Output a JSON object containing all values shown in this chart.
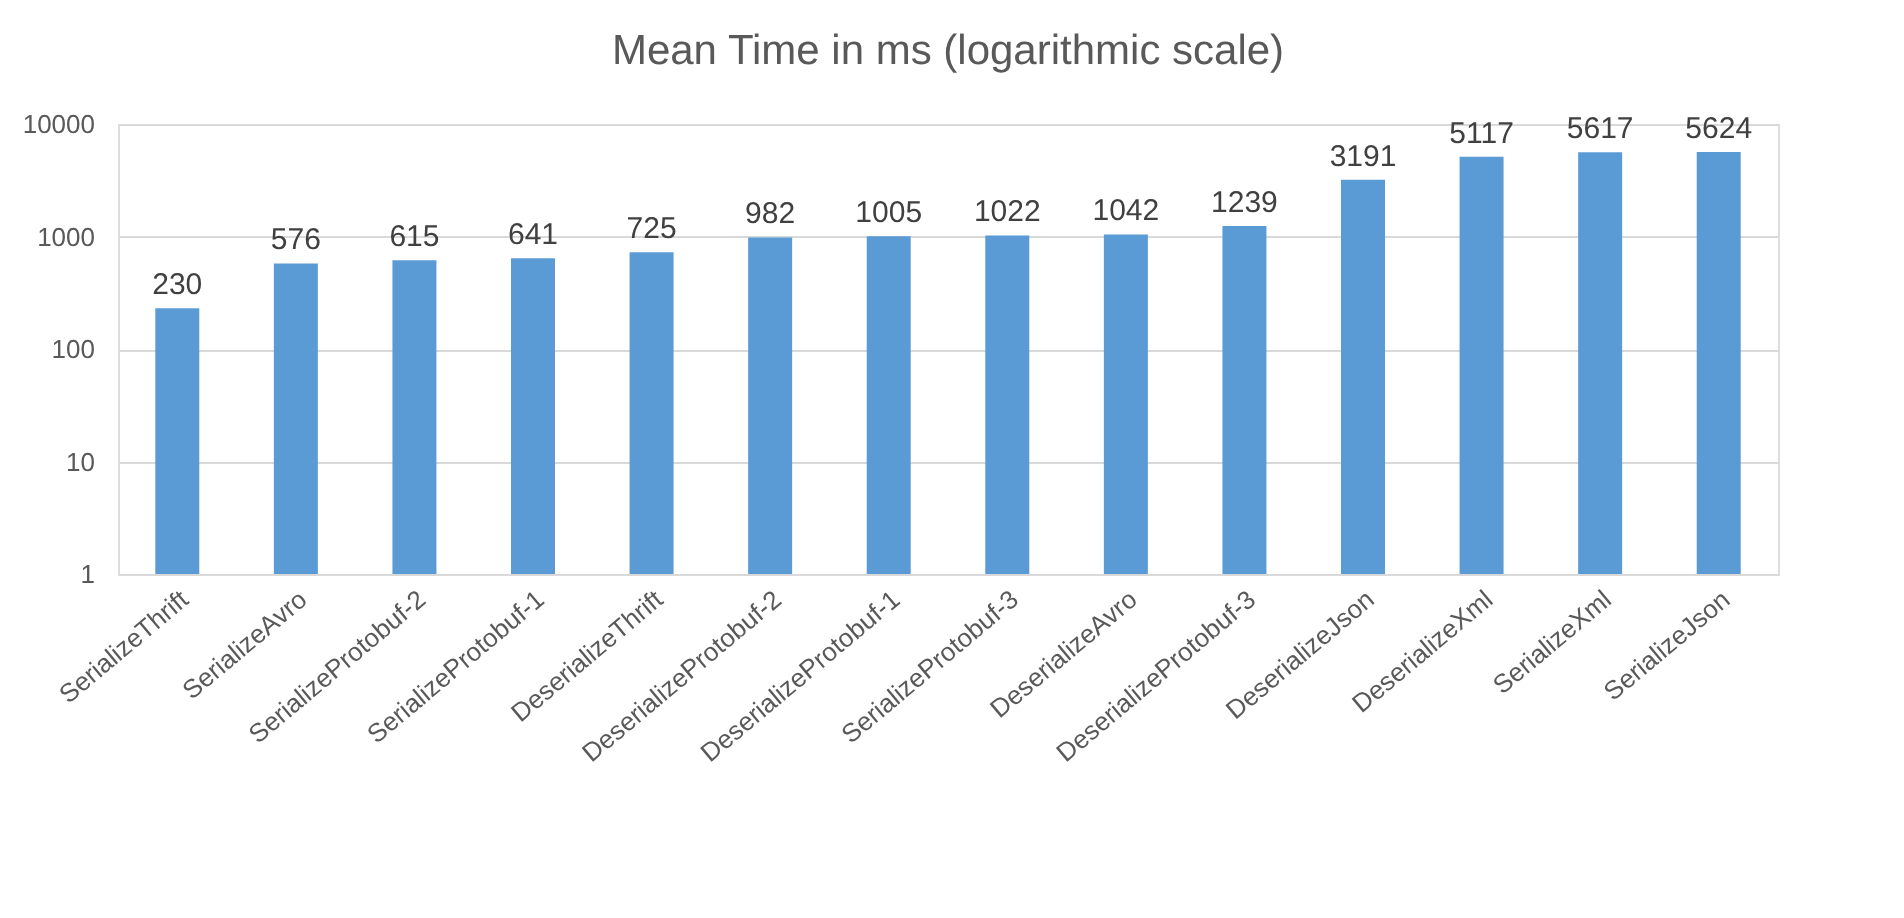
{
  "chart_data": {
    "type": "bar",
    "title": "Mean Time in ms (logarithmic scale)",
    "categories": [
      "SerializeThrift",
      "SerializeAvro",
      "SerializeProtobuf-2",
      "SerializeProtobuf-1",
      "DeserializeThrift",
      "DeserializeProtobuf-2",
      "DeserializeProtobuf-1",
      "SerializeProtobuf-3",
      "DeserializeAvro",
      "DeserializeProtobuf-3",
      "DeserializeJson",
      "DeserializeXml",
      "SerializeXml",
      "SerializeJson"
    ],
    "values": [
      230,
      576,
      615,
      641,
      725,
      982,
      1005,
      1022,
      1042,
      1239,
      3191,
      5117,
      5617,
      5624
    ],
    "color": "#5b9bd5",
    "log": true,
    "ylim": [
      1,
      10000
    ],
    "yticks": [
      1,
      10,
      100,
      1000,
      10000
    ],
    "grid": "y",
    "data_labels": true
  }
}
